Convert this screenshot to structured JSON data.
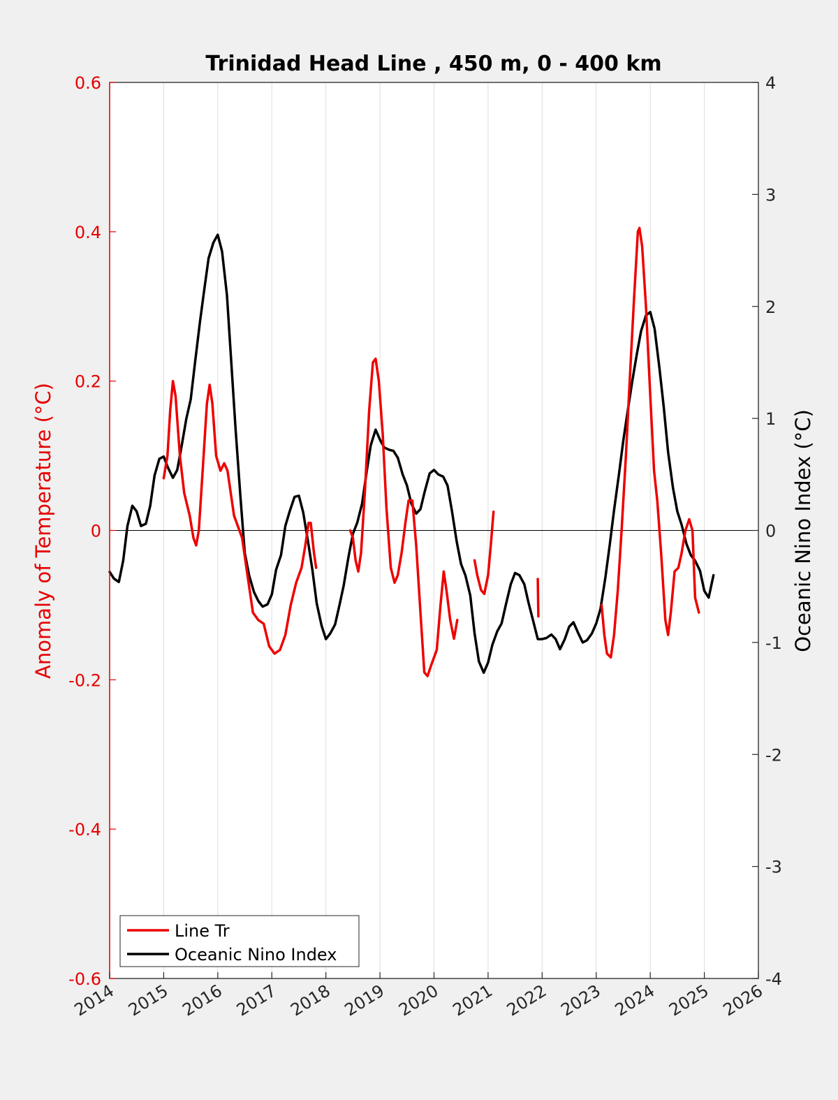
{
  "chart_data": {
    "type": "line",
    "title": "Trinidad Head Line , 450 m, 0 - 400 km",
    "xlabel": "",
    "ylabel_left": "Anomaly of Temperature (°C)",
    "ylabel_right": "Oceanic Nino Index (°C)",
    "xlim": [
      2014,
      2026
    ],
    "ylim_left": [
      -0.6,
      0.6
    ],
    "ylim_right": [
      -4,
      4
    ],
    "x_ticks": [
      2014,
      2015,
      2016,
      2017,
      2018,
      2019,
      2020,
      2021,
      2022,
      2023,
      2024,
      2025,
      2026
    ],
    "x_tick_labels": [
      "2014",
      "2015",
      "2016",
      "2017",
      "2018",
      "2019",
      "2020",
      "2021",
      "2022",
      "2023",
      "2024",
      "2025",
      "2026"
    ],
    "y_left_ticks": [
      -0.6,
      -0.4,
      -0.2,
      0,
      0.2,
      0.4,
      0.6
    ],
    "y_left_tick_labels": [
      "-0.6",
      "-0.4",
      "-0.2",
      "0",
      "0.2",
      "0.4",
      "0.6"
    ],
    "y_right_ticks": [
      -4,
      -3,
      -2,
      -1,
      0,
      1,
      2,
      3,
      4
    ],
    "y_right_tick_labels": [
      "-4",
      "-3",
      "-2",
      "-1",
      "0",
      "1",
      "2",
      "3",
      "4"
    ],
    "grid": "vertical",
    "legend_position": "bottom-left",
    "colors": {
      "left_axis": "#e60000",
      "line_tr": "#ee0000",
      "oni": "#000000",
      "background": "#f0f0f0",
      "plot_bg": "#ffffff",
      "grid": "#dddddd"
    },
    "series": [
      {
        "name": "Line Tr",
        "axis": "left",
        "color": "#ee0000",
        "segments": [
          [
            [
              2015.0,
              0.07
            ],
            [
              2015.07,
              0.1
            ],
            [
              2015.12,
              0.16
            ],
            [
              2015.17,
              0.2
            ],
            [
              2015.22,
              0.18
            ],
            [
              2015.3,
              0.1
            ],
            [
              2015.38,
              0.05
            ],
            [
              2015.48,
              0.02
            ],
            [
              2015.55,
              -0.01
            ],
            [
              2015.6,
              -0.02
            ],
            [
              2015.65,
              0.0
            ],
            [
              2015.72,
              0.08
            ],
            [
              2015.8,
              0.17
            ],
            [
              2015.85,
              0.195
            ],
            [
              2015.9,
              0.17
            ],
            [
              2015.97,
              0.1
            ],
            [
              2016.05,
              0.08
            ],
            [
              2016.12,
              0.09
            ],
            [
              2016.18,
              0.08
            ],
            [
              2016.3,
              0.02
            ],
            [
              2016.45,
              -0.01
            ],
            [
              2016.55,
              -0.06
            ],
            [
              2016.65,
              -0.11
            ],
            [
              2016.75,
              -0.12
            ],
            [
              2016.85,
              -0.125
            ],
            [
              2016.95,
              -0.155
            ],
            [
              2017.05,
              -0.165
            ],
            [
              2017.15,
              -0.16
            ],
            [
              2017.25,
              -0.14
            ],
            [
              2017.35,
              -0.1
            ],
            [
              2017.45,
              -0.07
            ],
            [
              2017.55,
              -0.05
            ],
            [
              2017.62,
              -0.02
            ],
            [
              2017.68,
              0.01
            ],
            [
              2017.72,
              0.01
            ],
            [
              2017.78,
              -0.03
            ],
            [
              2017.82,
              -0.05
            ]
          ],
          [
            [
              2018.45,
              0.0
            ],
            [
              2018.5,
              -0.01
            ],
            [
              2018.55,
              -0.04
            ],
            [
              2018.6,
              -0.055
            ],
            [
              2018.65,
              -0.03
            ],
            [
              2018.72,
              0.05
            ],
            [
              2018.8,
              0.16
            ],
            [
              2018.87,
              0.225
            ],
            [
              2018.92,
              0.23
            ],
            [
              2018.98,
              0.2
            ],
            [
              2019.05,
              0.13
            ],
            [
              2019.12,
              0.03
            ],
            [
              2019.2,
              -0.05
            ],
            [
              2019.27,
              -0.07
            ],
            [
              2019.33,
              -0.06
            ],
            [
              2019.4,
              -0.03
            ],
            [
              2019.47,
              0.01
            ],
            [
              2019.53,
              0.04
            ],
            [
              2019.6,
              0.04
            ],
            [
              2019.67,
              -0.02
            ],
            [
              2019.75,
              -0.11
            ],
            [
              2019.82,
              -0.19
            ],
            [
              2019.88,
              -0.195
            ],
            [
              2019.95,
              -0.18
            ],
            [
              2020.05,
              -0.16
            ],
            [
              2020.12,
              -0.1
            ],
            [
              2020.18,
              -0.055
            ],
            [
              2020.23,
              -0.08
            ],
            [
              2020.3,
              -0.12
            ],
            [
              2020.37,
              -0.145
            ],
            [
              2020.43,
              -0.12
            ]
          ],
          [
            [
              2020.75,
              -0.04
            ],
            [
              2020.8,
              -0.06
            ],
            [
              2020.87,
              -0.08
            ],
            [
              2020.93,
              -0.085
            ],
            [
              2021.0,
              -0.06
            ],
            [
              2021.05,
              -0.02
            ],
            [
              2021.1,
              0.025
            ]
          ],
          [
            [
              2021.92,
              -0.065
            ],
            [
              2021.93,
              -0.115
            ]
          ],
          [
            [
              2023.1,
              -0.1
            ],
            [
              2023.15,
              -0.14
            ],
            [
              2023.2,
              -0.165
            ],
            [
              2023.27,
              -0.17
            ],
            [
              2023.33,
              -0.14
            ],
            [
              2023.4,
              -0.08
            ],
            [
              2023.47,
              0.0
            ],
            [
              2023.55,
              0.1
            ],
            [
              2023.62,
              0.2
            ],
            [
              2023.7,
              0.31
            ],
            [
              2023.77,
              0.4
            ],
            [
              2023.8,
              0.405
            ],
            [
              2023.85,
              0.38
            ],
            [
              2023.92,
              0.3
            ],
            [
              2024.0,
              0.18
            ],
            [
              2024.07,
              0.08
            ],
            [
              2024.13,
              0.04
            ],
            [
              2024.2,
              -0.03
            ],
            [
              2024.28,
              -0.12
            ],
            [
              2024.33,
              -0.14
            ],
            [
              2024.38,
              -0.11
            ],
            [
              2024.45,
              -0.055
            ],
            [
              2024.52,
              -0.05
            ],
            [
              2024.58,
              -0.03
            ],
            [
              2024.65,
              0.0
            ],
            [
              2024.72,
              0.015
            ],
            [
              2024.78,
              0.0
            ],
            [
              2024.83,
              -0.09
            ],
            [
              2024.9,
              -0.11
            ]
          ]
        ]
      },
      {
        "name": "Oceanic Nino Index",
        "axis": "right",
        "color": "#000000",
        "points": [
          [
            2014.0,
            -0.37
          ],
          [
            2014.08,
            -0.43
          ],
          [
            2014.17,
            -0.46
          ],
          [
            2014.25,
            -0.27
          ],
          [
            2014.33,
            0.04
          ],
          [
            2014.42,
            0.22
          ],
          [
            2014.5,
            0.17
          ],
          [
            2014.58,
            0.04
          ],
          [
            2014.67,
            0.06
          ],
          [
            2014.75,
            0.22
          ],
          [
            2014.83,
            0.49
          ],
          [
            2014.92,
            0.64
          ],
          [
            2015.0,
            0.66
          ],
          [
            2015.08,
            0.56
          ],
          [
            2015.17,
            0.47
          ],
          [
            2015.25,
            0.54
          ],
          [
            2015.33,
            0.75
          ],
          [
            2015.42,
            1.0
          ],
          [
            2015.5,
            1.17
          ],
          [
            2015.58,
            1.5
          ],
          [
            2015.67,
            1.86
          ],
          [
            2015.75,
            2.15
          ],
          [
            2015.83,
            2.43
          ],
          [
            2015.92,
            2.57
          ],
          [
            2016.0,
            2.64
          ],
          [
            2016.08,
            2.49
          ],
          [
            2016.17,
            2.1
          ],
          [
            2016.25,
            1.5
          ],
          [
            2016.33,
            0.9
          ],
          [
            2016.42,
            0.3
          ],
          [
            2016.5,
            -0.2
          ],
          [
            2016.58,
            -0.4
          ],
          [
            2016.67,
            -0.55
          ],
          [
            2016.75,
            -0.63
          ],
          [
            2016.83,
            -0.68
          ],
          [
            2016.92,
            -0.66
          ],
          [
            2017.0,
            -0.57
          ],
          [
            2017.08,
            -0.35
          ],
          [
            2017.17,
            -0.22
          ],
          [
            2017.25,
            0.04
          ],
          [
            2017.33,
            0.17
          ],
          [
            2017.42,
            0.3
          ],
          [
            2017.5,
            0.31
          ],
          [
            2017.58,
            0.16
          ],
          [
            2017.67,
            -0.1
          ],
          [
            2017.75,
            -0.35
          ],
          [
            2017.83,
            -0.65
          ],
          [
            2017.92,
            -0.85
          ],
          [
            2018.0,
            -0.97
          ],
          [
            2018.08,
            -0.92
          ],
          [
            2018.17,
            -0.84
          ],
          [
            2018.25,
            -0.67
          ],
          [
            2018.33,
            -0.49
          ],
          [
            2018.42,
            -0.23
          ],
          [
            2018.5,
            -0.03
          ],
          [
            2018.58,
            0.07
          ],
          [
            2018.67,
            0.24
          ],
          [
            2018.75,
            0.51
          ],
          [
            2018.83,
            0.76
          ],
          [
            2018.92,
            0.9
          ],
          [
            2019.0,
            0.81
          ],
          [
            2019.08,
            0.74
          ],
          [
            2019.17,
            0.72
          ],
          [
            2019.25,
            0.71
          ],
          [
            2019.33,
            0.65
          ],
          [
            2019.42,
            0.5
          ],
          [
            2019.5,
            0.4
          ],
          [
            2019.58,
            0.24
          ],
          [
            2019.67,
            0.15
          ],
          [
            2019.75,
            0.19
          ],
          [
            2019.83,
            0.35
          ],
          [
            2019.92,
            0.51
          ],
          [
            2020.0,
            0.54
          ],
          [
            2020.08,
            0.5
          ],
          [
            2020.17,
            0.48
          ],
          [
            2020.25,
            0.4
          ],
          [
            2020.33,
            0.18
          ],
          [
            2020.42,
            -0.1
          ],
          [
            2020.5,
            -0.3
          ],
          [
            2020.58,
            -0.4
          ],
          [
            2020.67,
            -0.58
          ],
          [
            2020.75,
            -0.92
          ],
          [
            2020.83,
            -1.17
          ],
          [
            2020.92,
            -1.27
          ],
          [
            2021.0,
            -1.18
          ],
          [
            2021.08,
            -1.02
          ],
          [
            2021.17,
            -0.9
          ],
          [
            2021.25,
            -0.83
          ],
          [
            2021.33,
            -0.66
          ],
          [
            2021.42,
            -0.48
          ],
          [
            2021.5,
            -0.38
          ],
          [
            2021.58,
            -0.4
          ],
          [
            2021.67,
            -0.48
          ],
          [
            2021.75,
            -0.65
          ],
          [
            2021.83,
            -0.8
          ],
          [
            2021.92,
            -0.97
          ],
          [
            2022.0,
            -0.97
          ],
          [
            2022.08,
            -0.96
          ],
          [
            2022.17,
            -0.93
          ],
          [
            2022.25,
            -0.97
          ],
          [
            2022.33,
            -1.06
          ],
          [
            2022.42,
            -0.97
          ],
          [
            2022.5,
            -0.86
          ],
          [
            2022.58,
            -0.82
          ],
          [
            2022.67,
            -0.92
          ],
          [
            2022.75,
            -1.0
          ],
          [
            2022.83,
            -0.98
          ],
          [
            2022.92,
            -0.92
          ],
          [
            2023.0,
            -0.83
          ],
          [
            2023.08,
            -0.7
          ],
          [
            2023.17,
            -0.42
          ],
          [
            2023.25,
            -0.13
          ],
          [
            2023.33,
            0.18
          ],
          [
            2023.42,
            0.5
          ],
          [
            2023.5,
            0.8
          ],
          [
            2023.58,
            1.06
          ],
          [
            2023.67,
            1.34
          ],
          [
            2023.75,
            1.57
          ],
          [
            2023.83,
            1.78
          ],
          [
            2023.92,
            1.92
          ],
          [
            2024.0,
            1.95
          ],
          [
            2024.08,
            1.8
          ],
          [
            2024.17,
            1.45
          ],
          [
            2024.25,
            1.1
          ],
          [
            2024.33,
            0.7
          ],
          [
            2024.42,
            0.38
          ],
          [
            2024.5,
            0.17
          ],
          [
            2024.58,
            0.05
          ],
          [
            2024.67,
            -0.12
          ],
          [
            2024.75,
            -0.22
          ],
          [
            2024.83,
            -0.27
          ],
          [
            2024.92,
            -0.36
          ],
          [
            2025.0,
            -0.54
          ],
          [
            2025.08,
            -0.6
          ],
          [
            2025.17,
            -0.4
          ]
        ]
      }
    ]
  }
}
